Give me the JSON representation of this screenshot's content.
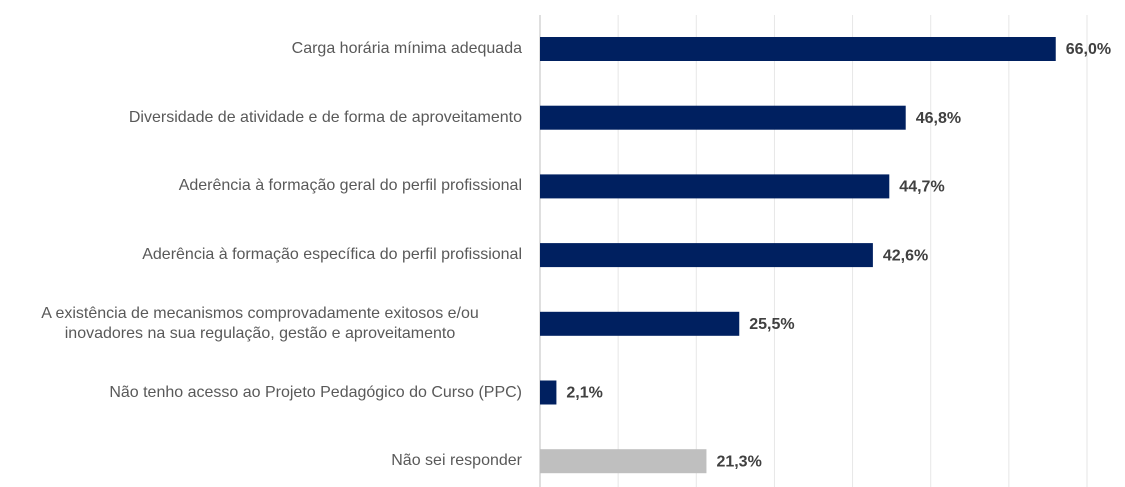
{
  "chart_data": {
    "type": "barh",
    "categories": [
      "Carga horária mínima adequada",
      "Diversidade de atividade e de forma de aproveitamento",
      "Aderência à formação  geral do perfil profissional",
      "Aderência à formação específica do perfil profissional",
      "A existência de mecanismos comprovadamente exitosos e/ou\ninovadores na sua regulação, gestão e aproveitamento",
      "Não tenho acesso ao Projeto Pedagógico do Curso (PPC)",
      "Não sei responder"
    ],
    "values": [
      66.0,
      46.8,
      44.7,
      42.6,
      25.5,
      2.1,
      21.3
    ],
    "value_labels": [
      "66,0%",
      "46,8%",
      "44,7%",
      "42,6%",
      "25,5%",
      "2,1%",
      "21,3%"
    ],
    "colors": [
      "#002060",
      "#002060",
      "#002060",
      "#002060",
      "#002060",
      "#002060",
      "#bfbfbf"
    ],
    "xlim": [
      0,
      70
    ],
    "xticks": [
      0,
      10,
      20,
      30,
      40,
      50,
      60,
      70
    ],
    "grid": true
  }
}
